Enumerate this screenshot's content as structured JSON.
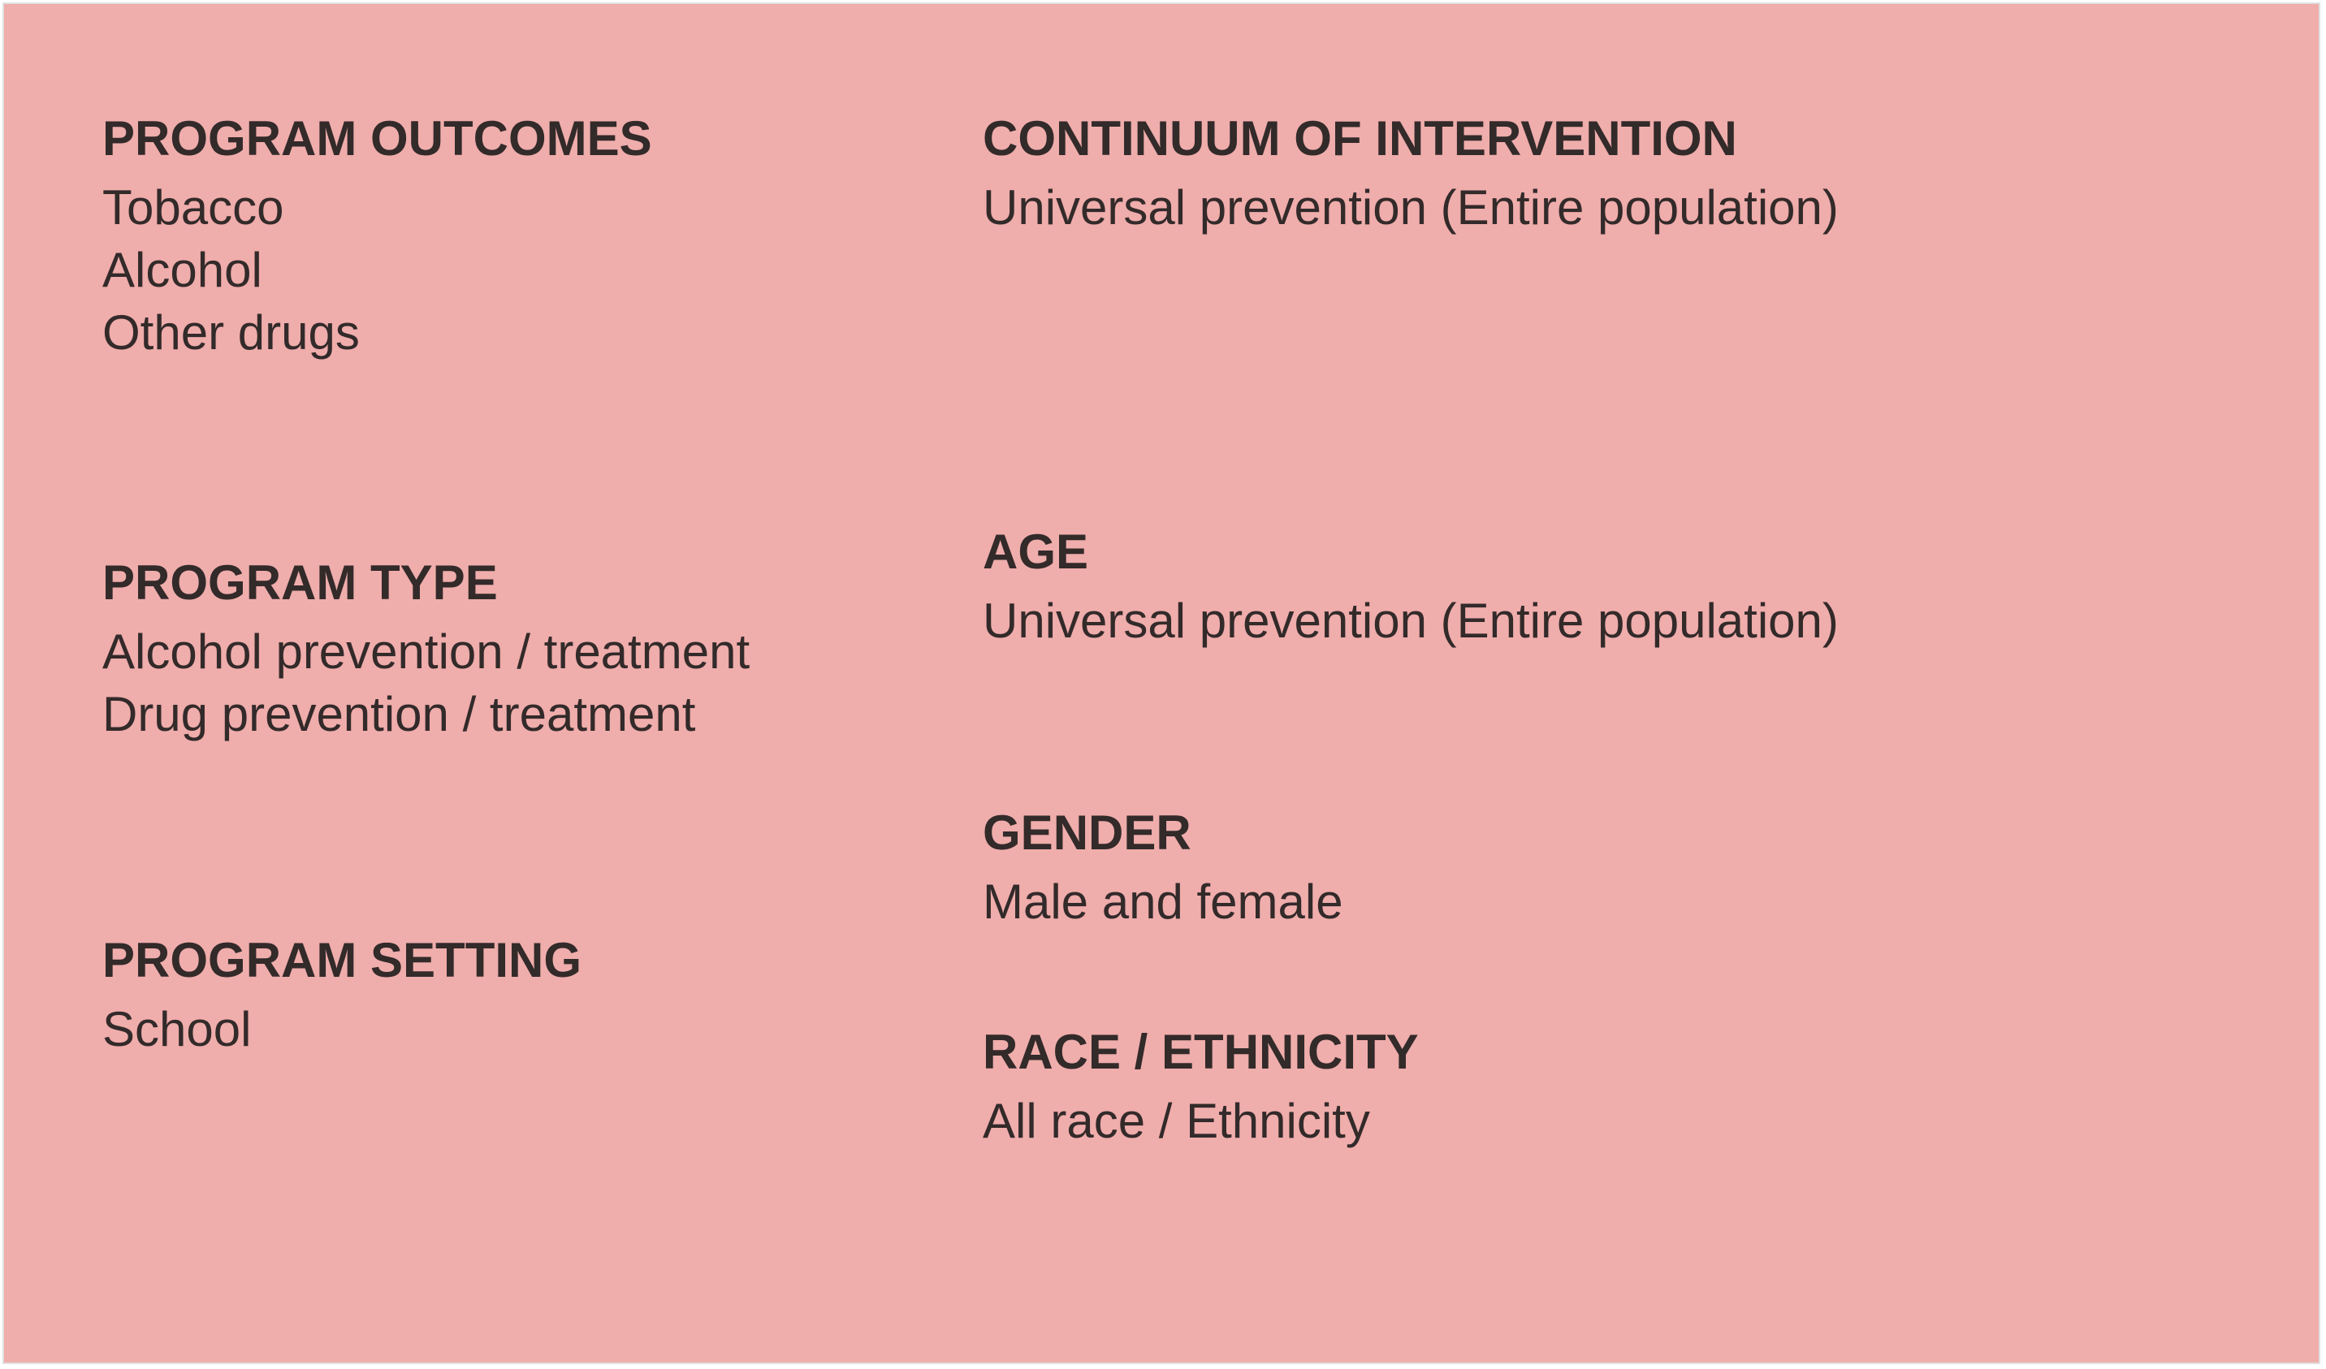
{
  "left_column": {
    "program_outcomes": {
      "heading": "PROGRAM OUTCOMES",
      "items": [
        "Tobacco",
        "Alcohol",
        "Other drugs"
      ]
    },
    "program_type": {
      "heading": "PROGRAM TYPE",
      "items": [
        "Alcohol prevention / treatment",
        "Drug prevention / treatment"
      ]
    },
    "program_setting": {
      "heading": "PROGRAM SETTING",
      "items": [
        "School"
      ]
    }
  },
  "right_column": {
    "continuum": {
      "heading": "CONTINUUM OF INTERVENTION",
      "items": [
        "Universal prevention (Entire population)"
      ]
    },
    "age": {
      "heading": "AGE",
      "items": [
        "Universal prevention (Entire population)"
      ]
    },
    "gender": {
      "heading": "GENDER",
      "items": [
        "Male and female"
      ]
    },
    "race": {
      "heading": "RACE / ETHNICITY",
      "items": [
        "All race / Ethnicity"
      ]
    }
  },
  "colors": {
    "panel_background": "#efadab",
    "text": "#332a2a"
  }
}
